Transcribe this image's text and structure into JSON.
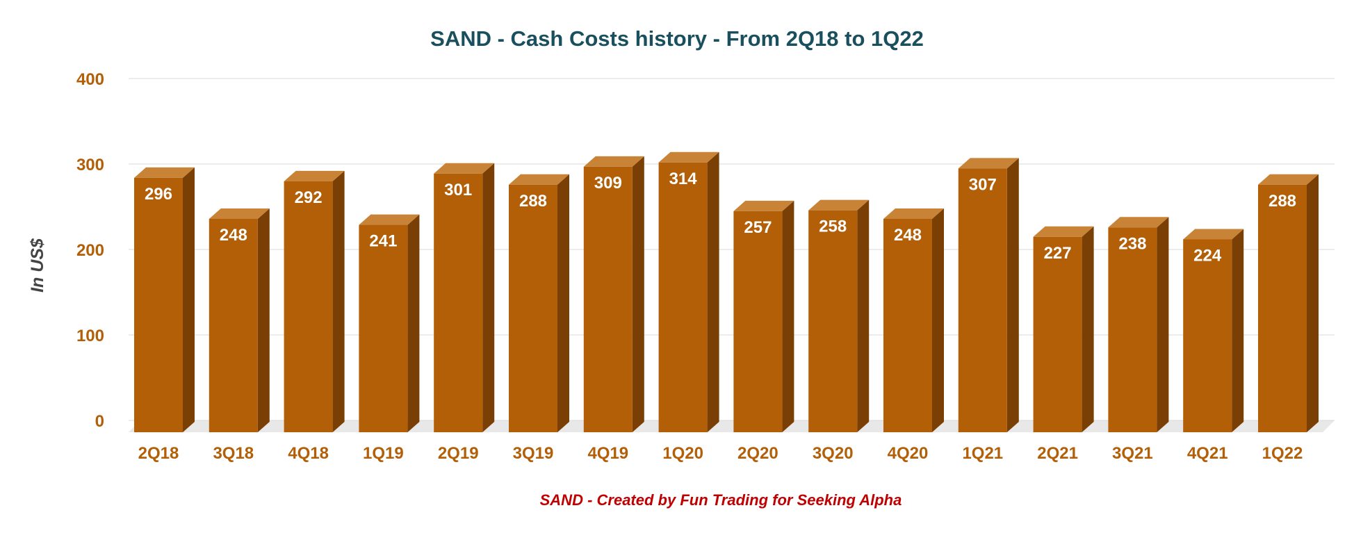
{
  "colors": {
    "bar_front": "#b35f08",
    "bar_side": "#7a3f04",
    "bar_top": "#c98336",
    "title": "#1a4f5e",
    "tick": "#b35f08",
    "caption": "#c00000",
    "grid": "#d9d9d9",
    "floor": "#e8e8e8"
  },
  "chart_data": {
    "type": "bar",
    "style": "3d-column",
    "title": "SAND - Cash Costs history - From 2Q18 to 1Q22",
    "ylabel": "In US$",
    "xlabel": "",
    "caption": "SAND - Created by Fun Trading for Seeking Alpha",
    "categories": [
      "2Q18",
      "3Q18",
      "4Q18",
      "1Q19",
      "2Q19",
      "3Q19",
      "4Q19",
      "1Q20",
      "2Q20",
      "3Q20",
      "4Q20",
      "1Q21",
      "2Q21",
      "3Q21",
      "4Q21",
      "1Q22"
    ],
    "values": [
      296,
      248,
      292,
      241,
      301,
      288,
      309,
      314,
      257,
      258,
      248,
      307,
      227,
      238,
      224,
      288
    ],
    "ylim": [
      0,
      400
    ],
    "yticks": [
      0,
      100,
      200,
      300,
      400
    ],
    "grid": true,
    "legend": "none",
    "data_labels": true
  }
}
